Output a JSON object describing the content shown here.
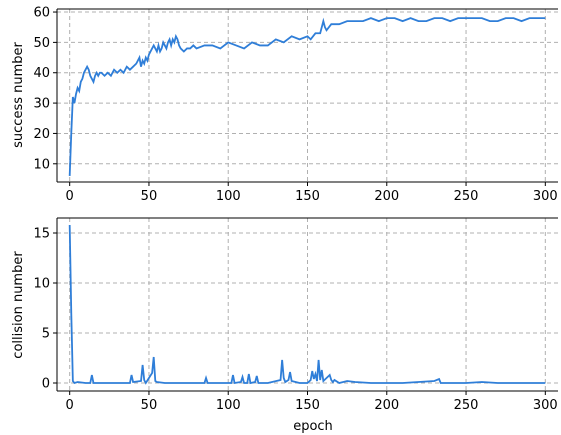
{
  "colors": {
    "line": "#2f7ed8",
    "grid": "#b0b0b0",
    "axis": "#000000"
  },
  "chart_data": [
    {
      "type": "line",
      "title": "",
      "xlabel": "",
      "ylabel": "success number",
      "xlim": [
        -8,
        308
      ],
      "ylim": [
        4,
        61
      ],
      "xticks": [
        0,
        50,
        100,
        150,
        200,
        250,
        300
      ],
      "yticks": [
        10,
        20,
        30,
        40,
        50,
        60
      ],
      "grid": true,
      "series": [
        {
          "x": [
            0,
            1,
            2,
            3,
            4,
            5,
            6,
            7,
            8,
            9,
            10,
            11,
            12,
            13,
            14,
            15,
            16,
            17,
            18,
            19,
            20,
            22,
            24,
            26,
            28,
            30,
            32,
            34,
            36,
            38,
            40,
            42,
            44,
            45,
            46,
            47,
            48,
            49,
            50,
            51,
            52,
            53,
            54,
            55,
            56,
            57,
            58,
            59,
            60,
            61,
            62,
            63,
            64,
            65,
            66,
            67,
            68,
            69,
            70,
            72,
            74,
            76,
            78,
            80,
            85,
            90,
            95,
            100,
            105,
            110,
            115,
            120,
            125,
            130,
            135,
            140,
            145,
            150,
            152,
            155,
            158,
            160,
            161,
            162,
            165,
            170,
            175,
            180,
            185,
            190,
            195,
            200,
            205,
            210,
            215,
            220,
            225,
            230,
            235,
            240,
            245,
            250,
            255,
            260,
            265,
            270,
            275,
            280,
            285,
            290,
            295,
            300
          ],
          "values": [
            6,
            20,
            32,
            30,
            33,
            35,
            34,
            37,
            38,
            40,
            41,
            42,
            41,
            39,
            38,
            37,
            39,
            40,
            39,
            40,
            40,
            39,
            40,
            39,
            41,
            40,
            41,
            40,
            42,
            41,
            42,
            43,
            45,
            42,
            44,
            43,
            45,
            44,
            46,
            47,
            48,
            49,
            48,
            47,
            49,
            47,
            48,
            50,
            49,
            48,
            50,
            51,
            49,
            51,
            50,
            52,
            51,
            49,
            48,
            47,
            48,
            48,
            49,
            48,
            49,
            49,
            48,
            50,
            49,
            48,
            50,
            49,
            49,
            51,
            50,
            52,
            51,
            52,
            51,
            53,
            53,
            57,
            55,
            54,
            56,
            56,
            57,
            57,
            57,
            58,
            57,
            58,
            58,
            57,
            58,
            57,
            57,
            58,
            58,
            57,
            58,
            58,
            58,
            58,
            57,
            57,
            58,
            58,
            57,
            58,
            58,
            58
          ]
        }
      ]
    },
    {
      "type": "line",
      "title": "",
      "xlabel": "epoch",
      "ylabel": "collision number",
      "xlim": [
        -8,
        308
      ],
      "ylim": [
        -0.8,
        16.5
      ],
      "xticks": [
        0,
        50,
        100,
        150,
        200,
        250,
        300
      ],
      "yticks": [
        0,
        5,
        10,
        15
      ],
      "grid": true,
      "series": [
        {
          "x": [
            0,
            1,
            2,
            3,
            5,
            10,
            13,
            14,
            15,
            20,
            30,
            38,
            39,
            40,
            45,
            46,
            47,
            48,
            50,
            52,
            53,
            54,
            55,
            60,
            70,
            80,
            85,
            86,
            87,
            90,
            100,
            102,
            103,
            104,
            108,
            109,
            110,
            112,
            113,
            114,
            117,
            118,
            119,
            125,
            133,
            134,
            135,
            136,
            138,
            139,
            140,
            145,
            150,
            152,
            153,
            154,
            155,
            156,
            157,
            158,
            159,
            160,
            162,
            164,
            165,
            166,
            167,
            170,
            175,
            180,
            190,
            200,
            210,
            220,
            230,
            233,
            234,
            240,
            250,
            260,
            270,
            280,
            290,
            300
          ],
          "values": [
            15.8,
            7,
            0.2,
            0,
            0.1,
            0,
            0,
            0.8,
            0,
            0,
            0,
            0,
            0.8,
            0.1,
            0.2,
            1.8,
            0.3,
            0,
            0.5,
            1,
            2.6,
            0.2,
            0.1,
            0,
            0,
            0,
            0,
            0.5,
            0,
            0,
            0,
            0,
            0.8,
            0,
            0.1,
            0.6,
            0,
            0,
            0.9,
            0,
            0.1,
            0.7,
            0,
            0,
            0.3,
            2.3,
            0.5,
            0.1,
            0.3,
            1.1,
            0.2,
            0,
            0,
            0.3,
            1.2,
            0.4,
            0.9,
            0.2,
            2.3,
            0.3,
            1.3,
            0.2,
            0.5,
            0.8,
            0.3,
            0.1,
            0.3,
            0,
            0.2,
            0.1,
            0,
            0,
            0,
            0.1,
            0.2,
            0.4,
            0,
            0,
            0,
            0.1,
            0,
            0,
            0,
            0
          ]
        }
      ]
    }
  ]
}
